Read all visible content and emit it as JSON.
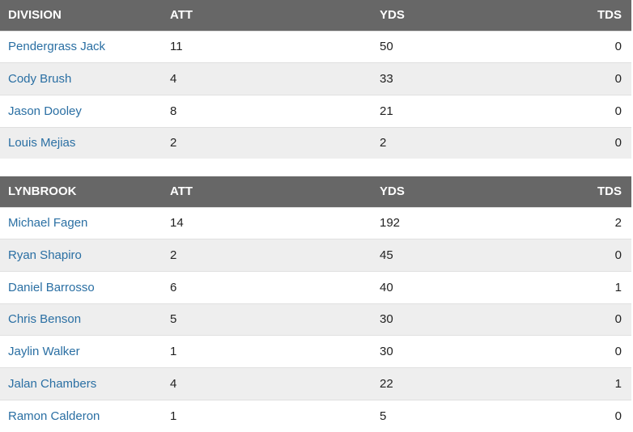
{
  "tables": [
    {
      "headers": [
        "DIVISION",
        "ATT",
        "YDS",
        "TDS"
      ],
      "rows": [
        {
          "player": "Pendergrass Jack",
          "att": "11",
          "yds": "50",
          "tds": "0"
        },
        {
          "player": "Cody Brush",
          "att": "4",
          "yds": "33",
          "tds": "0"
        },
        {
          "player": "Jason Dooley",
          "att": "8",
          "yds": "21",
          "tds": "0"
        },
        {
          "player": "Louis Mejias",
          "att": "2",
          "yds": "2",
          "tds": "0"
        }
      ]
    },
    {
      "headers": [
        "LYNBROOK",
        "ATT",
        "YDS",
        "TDS"
      ],
      "rows": [
        {
          "player": "Michael Fagen",
          "att": "14",
          "yds": "192",
          "tds": "2"
        },
        {
          "player": "Ryan Shapiro",
          "att": "2",
          "yds": "45",
          "tds": "0"
        },
        {
          "player": "Daniel Barrosso",
          "att": "6",
          "yds": "40",
          "tds": "1"
        },
        {
          "player": "Chris Benson",
          "att": "5",
          "yds": "30",
          "tds": "0"
        },
        {
          "player": "Jaylin Walker",
          "att": "1",
          "yds": "30",
          "tds": "0"
        },
        {
          "player": "Jalan Chambers",
          "att": "4",
          "yds": "22",
          "tds": "1"
        },
        {
          "player": "Ramon Calderon",
          "att": "1",
          "yds": "5",
          "tds": "0"
        }
      ]
    }
  ],
  "colors": {
    "header_bg": "#676767",
    "header_text": "#ffffff",
    "row_alt_bg": "#eeeeee",
    "link": "#2a6fa3"
  }
}
